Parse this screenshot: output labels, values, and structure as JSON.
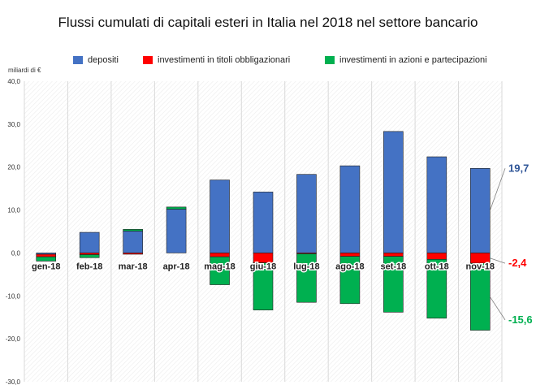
{
  "title": "Flussi cumulati di capitali esteri in Italia nel 2018 nel settore bancario",
  "unit_label": "miliardi di €",
  "chart_data": {
    "type": "bar",
    "stacked": true,
    "title": "Flussi cumulati di capitali esteri in Italia nel 2018 nel settore bancario",
    "ylabel": "miliardi di €",
    "ylim": [
      -30,
      40
    ],
    "yticks": [
      "-30,0",
      "-20,0",
      "-10,0",
      "0,0",
      "10,0",
      "20,0",
      "30,0",
      "40,0"
    ],
    "grid": true,
    "legend_position": "top",
    "categories": [
      "gen-18",
      "feb-18",
      "mar-18",
      "apr-18",
      "mag-18",
      "giu-18",
      "lug-18",
      "ago-18",
      "set-18",
      "ott-18",
      "nov-18"
    ],
    "series": [
      {
        "name": "depositi",
        "color": "#4472C4",
        "values": [
          -0.3,
          4.8,
          5.1,
          10.2,
          17.0,
          14.2,
          18.3,
          20.3,
          28.3,
          22.4,
          19.7
        ]
      },
      {
        "name": "investimenti in titoli obbligazionari",
        "color": "#FF0000",
        "values": [
          -0.6,
          -0.4,
          -0.3,
          0.0,
          -0.9,
          -2.3,
          -0.2,
          -0.8,
          -0.8,
          -1.5,
          -2.4
        ]
      },
      {
        "name": "investimenti in azioni e partecipazioni",
        "color": "#00B050",
        "values": [
          -1.0,
          -0.7,
          0.4,
          0.5,
          -6.5,
          -11.0,
          -11.3,
          -11.0,
          -13.0,
          -13.7,
          -15.6
        ]
      }
    ],
    "annotations": [
      {
        "text": "19,7",
        "series": "depositi",
        "color": "#2F5597"
      },
      {
        "text": "-2,4",
        "series": "investimenti in titoli obbligazionari",
        "color": "#FF0000"
      },
      {
        "text": "-15,6",
        "series": "investimenti in azioni e partecipazioni",
        "color": "#00B050"
      }
    ]
  }
}
